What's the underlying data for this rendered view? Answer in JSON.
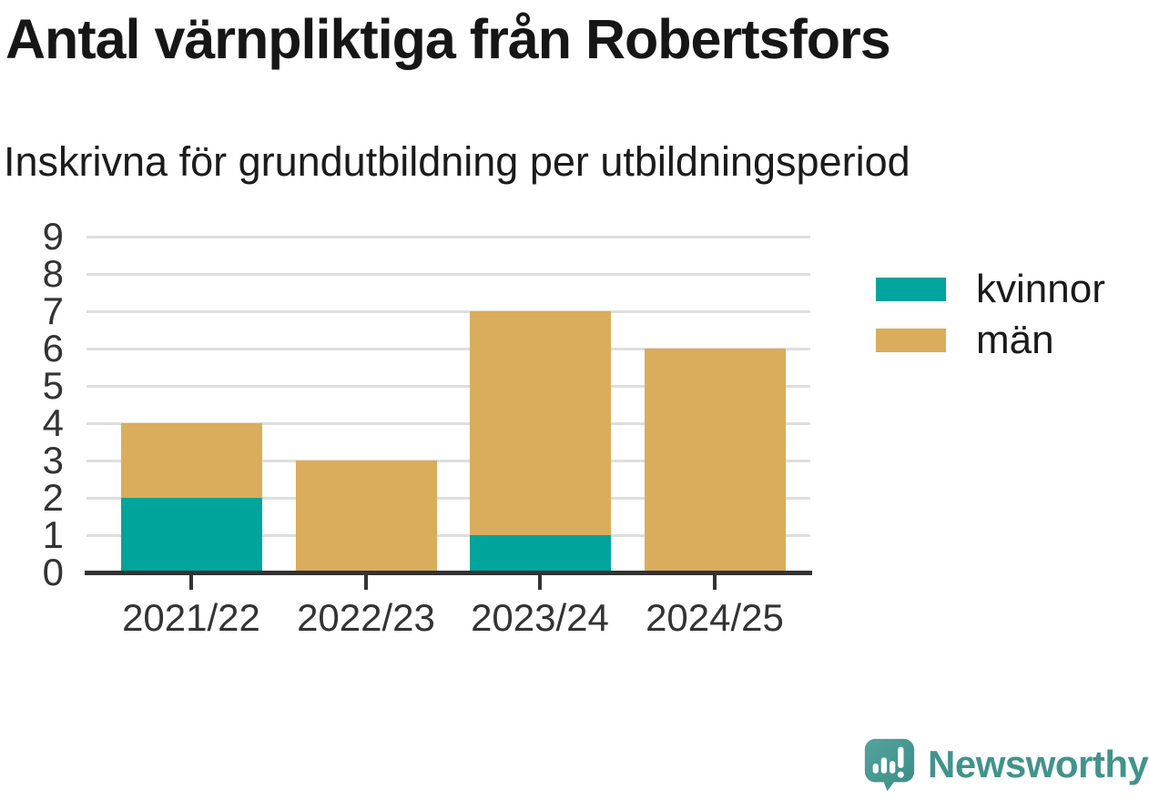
{
  "header": {
    "title": "Antal värnpliktiga från Robertsfors",
    "subtitle": "Inskrivna för grundutbildning per utbildningsperiod"
  },
  "chart_data": {
    "type": "bar",
    "stacked": true,
    "title": "Antal värnpliktiga från Robertsfors",
    "subtitle": "Inskrivna för grundutbildning per utbildningsperiod",
    "categories": [
      "2021/22",
      "2022/23",
      "2023/24",
      "2024/25"
    ],
    "series": [
      {
        "name": "kvinnor",
        "color": "#00A49B",
        "values": [
          2,
          0,
          1,
          0
        ]
      },
      {
        "name": "män",
        "color": "#D9AD5C",
        "values": [
          2,
          3,
          6,
          6
        ]
      }
    ],
    "totals": [
      4,
      3,
      7,
      6
    ],
    "xlabel": "",
    "ylabel": "",
    "ylim": [
      0,
      9
    ],
    "yticks": [
      0,
      1,
      2,
      3,
      4,
      5,
      6,
      7,
      8,
      9
    ],
    "grid": "horizontal",
    "legend_position": "right"
  },
  "branding": {
    "logo_text": "Newsworthy",
    "logo_color": "#43928C",
    "logo_icon": "newsworthy-speech-bubble-bar-chart-icon"
  },
  "colors": {
    "background": "#FFFFFF",
    "axis": "#333333",
    "gridline": "#DEDEDE",
    "title_text": "#161616",
    "kvinnor": "#00A49B",
    "man": "#D9AD5C"
  }
}
